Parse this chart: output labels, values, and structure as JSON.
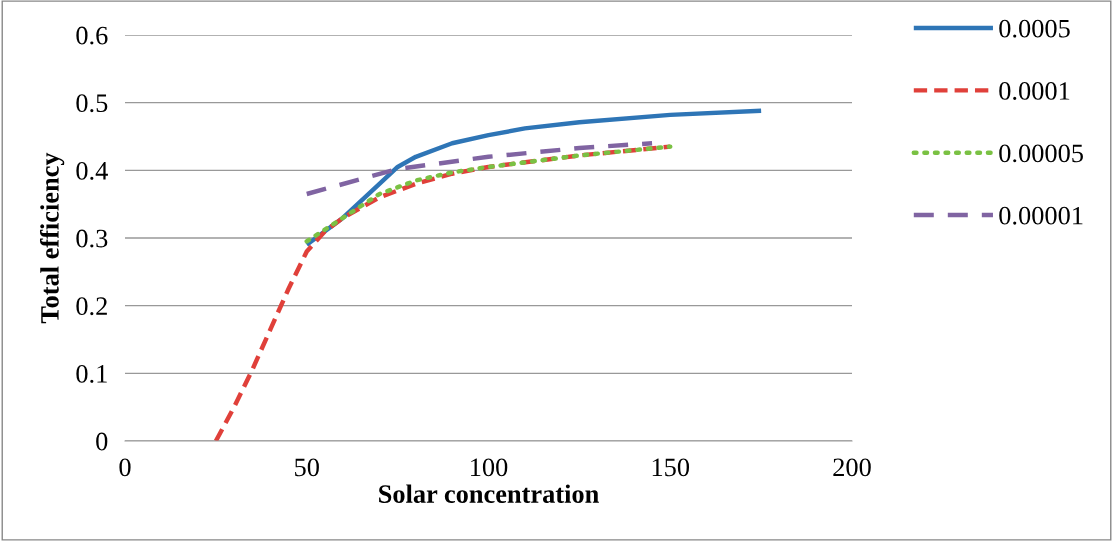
{
  "chart_data": {
    "type": "line",
    "xlabel": "Solar concentration",
    "ylabel": "Total efficiency",
    "xlim": [
      0,
      200
    ],
    "xticks": [
      0,
      50,
      100,
      150,
      200
    ],
    "ylim": [
      0,
      0.6
    ],
    "yticks": [
      0,
      0.1,
      0.2,
      0.3,
      0.4,
      0.5,
      0.6
    ],
    "grid": "y",
    "legend": "right",
    "marker": "none",
    "series": [
      {
        "name": "0.0005",
        "color": "#2e75b6",
        "line_style": "solid",
        "x": [
          50,
          60,
          70,
          75,
          80,
          90,
          100,
          110,
          125,
          150,
          175
        ],
        "values": [
          0.29,
          0.33,
          0.38,
          0.405,
          0.42,
          0.44,
          0.452,
          0.462,
          0.471,
          0.482,
          0.488
        ]
      },
      {
        "name": "0.0001",
        "color": "#e0403a",
        "line_style": "dashed",
        "x": [
          25,
          30,
          35,
          40,
          45,
          50,
          55,
          60,
          70,
          80,
          90,
          100,
          125,
          150
        ],
        "values": [
          0,
          0.05,
          0.105,
          0.165,
          0.225,
          0.28,
          0.31,
          0.33,
          0.36,
          0.38,
          0.395,
          0.405,
          0.422,
          0.435
        ]
      },
      {
        "name": "0.00005",
        "color": "#7ac143",
        "line_style": "dotted",
        "x": [
          50,
          60,
          70,
          80,
          90,
          100,
          125,
          150
        ],
        "values": [
          0.295,
          0.33,
          0.365,
          0.385,
          0.397,
          0.405,
          0.422,
          0.435
        ]
      },
      {
        "name": "0.00001",
        "color": "#8064a2",
        "line_style": "longdash",
        "x": [
          50,
          75,
          100,
          125,
          145
        ],
        "values": [
          0.365,
          0.402,
          0.42,
          0.433,
          0.44
        ]
      }
    ]
  }
}
